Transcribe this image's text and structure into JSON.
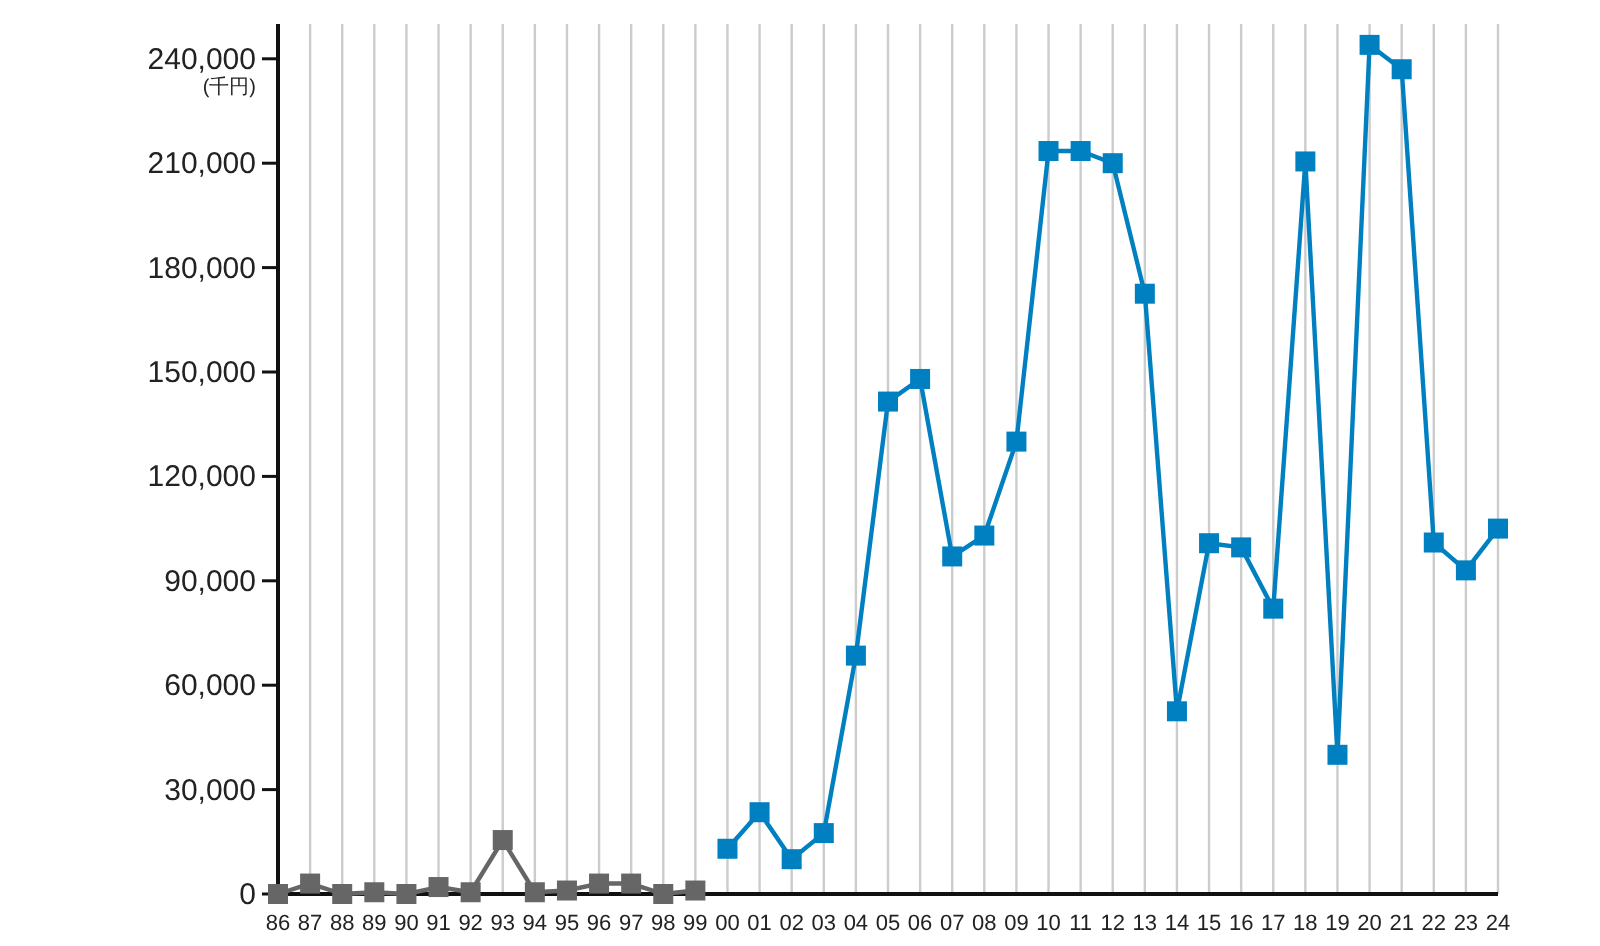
{
  "chart_data": {
    "type": "line",
    "ylabel": "(千円)",
    "categories": [
      "86",
      "87",
      "88",
      "89",
      "90",
      "91",
      "92",
      "93",
      "94",
      "95",
      "96",
      "97",
      "98",
      "99",
      "00",
      "01",
      "02",
      "03",
      "04",
      "05",
      "06",
      "07",
      "08",
      "09",
      "10",
      "11",
      "12",
      "13",
      "14",
      "15",
      "16",
      "17",
      "18",
      "19",
      "20",
      "21",
      "22",
      "23",
      "24"
    ],
    "series": [
      {
        "color": "#666666",
        "values": [
          0,
          3000,
          0,
          500,
          0,
          2000,
          500,
          15500,
          500,
          1000,
          3000,
          3000,
          0,
          1000,
          null,
          null,
          null,
          null,
          null,
          null,
          null,
          null,
          null,
          null,
          null,
          null,
          null,
          null,
          null,
          null,
          null,
          null,
          null,
          null,
          null,
          null,
          null,
          null,
          null
        ]
      },
      {
        "color": "#0080c0",
        "values": [
          null,
          null,
          null,
          null,
          null,
          null,
          null,
          null,
          null,
          null,
          null,
          null,
          null,
          null,
          13000,
          23500,
          10000,
          17500,
          68500,
          141500,
          148000,
          97000,
          103000,
          130000,
          213500,
          213500,
          210000,
          172500,
          52500,
          100800,
          99600,
          82000,
          210500,
          40000,
          244000,
          237000,
          101000,
          93000,
          105000
        ]
      }
    ],
    "ylim": [
      0,
      250000
    ],
    "yticks": [
      {
        "value": 0,
        "label": "0"
      },
      {
        "value": 30000,
        "label": "30,000"
      },
      {
        "value": 60000,
        "label": "60,000"
      },
      {
        "value": 90000,
        "label": "90,000"
      },
      {
        "value": 120000,
        "label": "120,000"
      },
      {
        "value": 150000,
        "label": "150,000"
      },
      {
        "value": 180000,
        "label": "180,000"
      },
      {
        "value": 210000,
        "label": "210,000"
      },
      {
        "value": 240000,
        "label": "240,000"
      }
    ],
    "grid": "x",
    "marker": "square",
    "line_style": "solid"
  }
}
